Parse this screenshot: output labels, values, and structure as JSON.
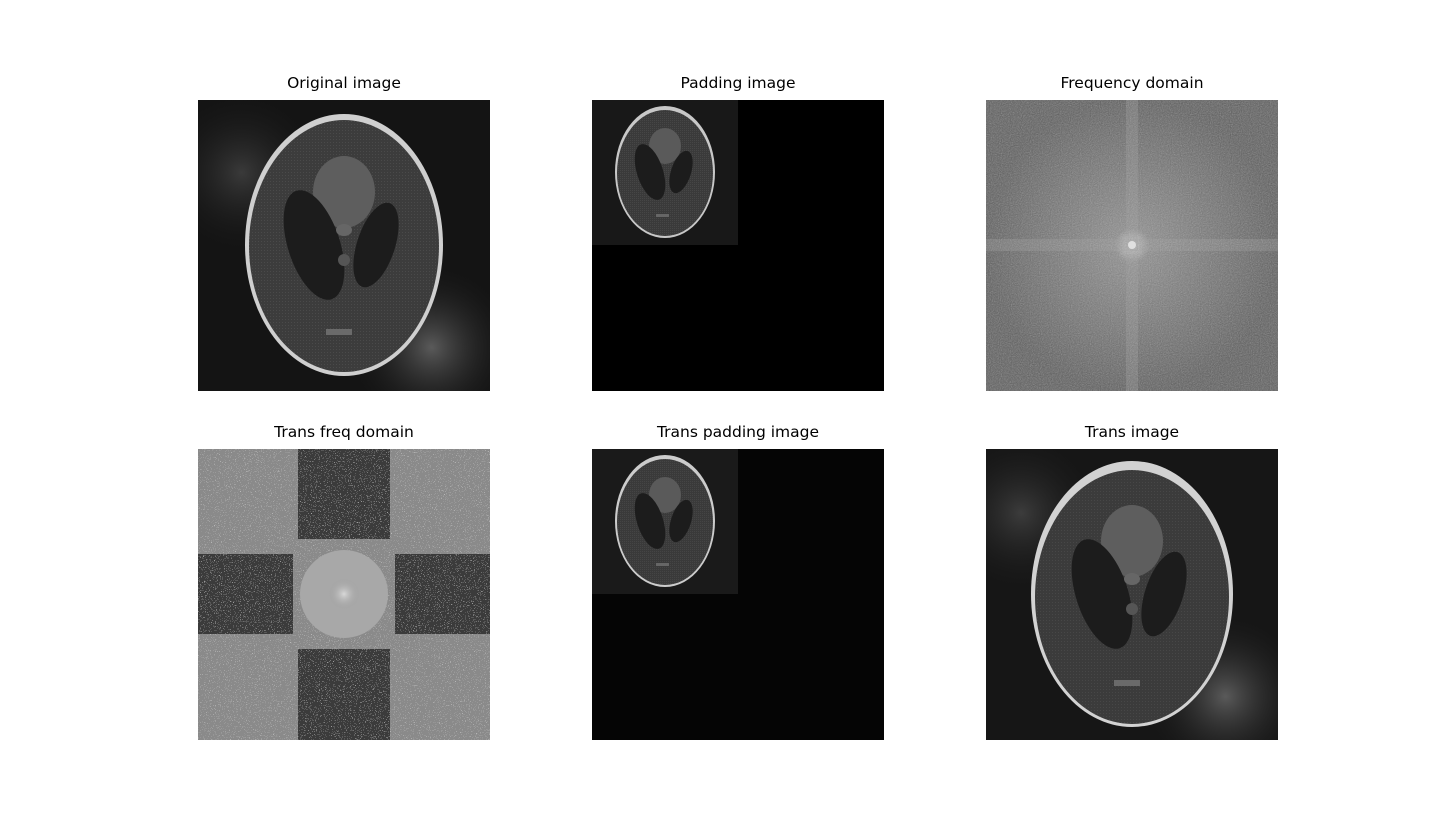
{
  "figure": {
    "panels": [
      {
        "title": "Original image"
      },
      {
        "title": "Padding image"
      },
      {
        "title": "Frequency domain"
      },
      {
        "title": "Trans freq domain"
      },
      {
        "title": "Trans padding image"
      },
      {
        "title": "Trans image"
      }
    ]
  }
}
